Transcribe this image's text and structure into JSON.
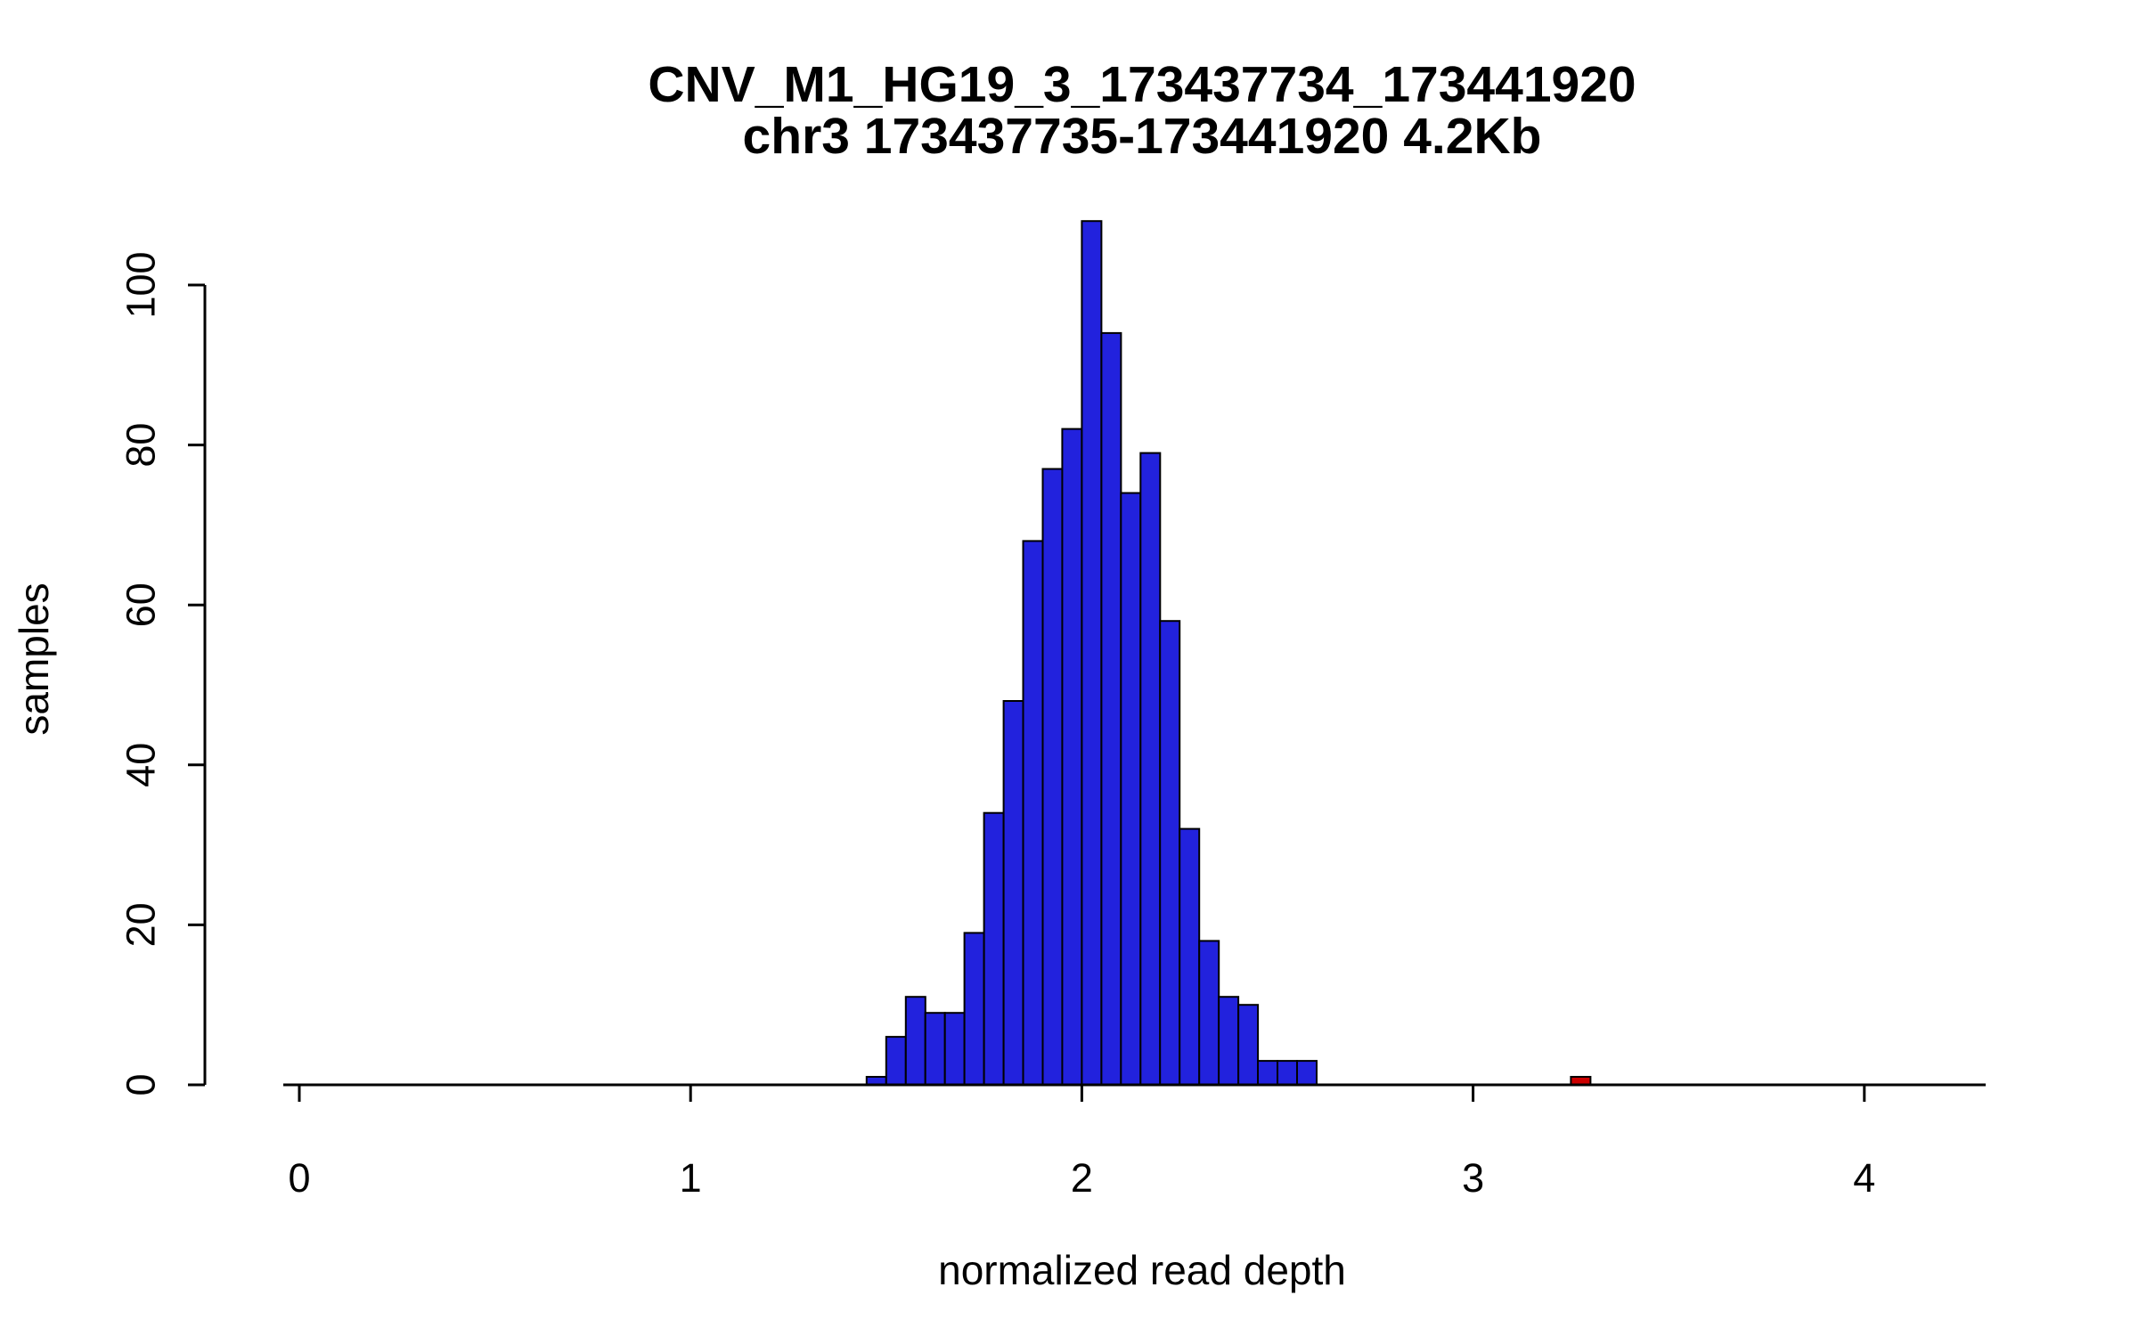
{
  "chart_data": {
    "type": "bar",
    "subtype": "histogram",
    "title": "CNV_M1_HG19_3_173437734_173441920",
    "subtitle": "chr3 173437735-173441920 4.2Kb",
    "xlabel": "normalized read depth",
    "ylabel": "samples",
    "x_ticks": [
      0,
      1,
      2,
      3,
      4
    ],
    "y_ticks": [
      0,
      20,
      40,
      60,
      80,
      100
    ],
    "xlim": [
      -0.05,
      4.3
    ],
    "ylim": [
      0,
      108
    ],
    "grid": false,
    "legend": "none",
    "bin_width": 0.05,
    "bar_edge_color": "#000000",
    "main_series": {
      "name": "samples",
      "color": "#2222DD",
      "bin_start": 1.45,
      "counts": [
        1,
        6,
        11,
        9,
        9,
        19,
        34,
        48,
        68,
        77,
        82,
        108,
        94,
        74,
        79,
        58,
        32,
        18,
        11,
        10,
        3,
        3,
        3
      ]
    },
    "outlier_series": {
      "name": "outlier",
      "color": "#CC0000",
      "bin_start": 3.25,
      "counts": [
        1
      ]
    }
  }
}
